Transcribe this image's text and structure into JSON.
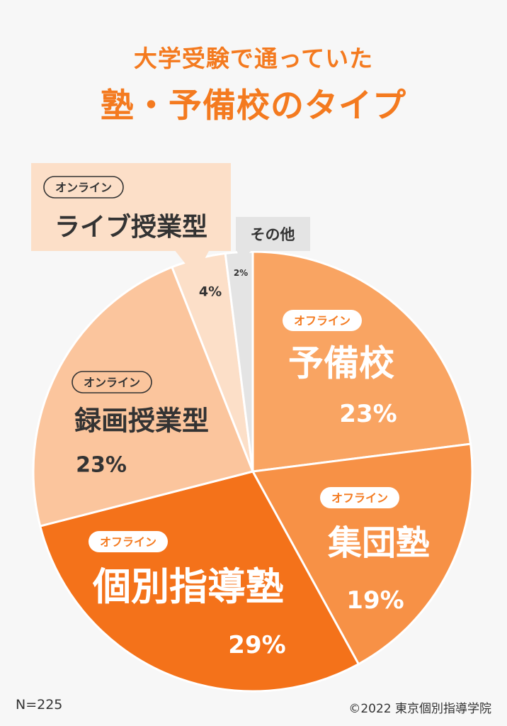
{
  "title": {
    "line1": "大学受験で通っていた",
    "line2": "塾・予備校のタイプ"
  },
  "chart_data": {
    "type": "pie",
    "title": "大学受験で通っていた 塾・予備校のタイプ",
    "slices": [
      {
        "tag": "オフライン",
        "label": "予備校",
        "value": 23,
        "value_label": "23%",
        "color": "#f9a462"
      },
      {
        "tag": "オフライン",
        "label": "集団塾",
        "value": 19,
        "value_label": "19%",
        "color": "#f79146"
      },
      {
        "tag": "オフライン",
        "label": "個別指導塾",
        "value": 29,
        "value_label": "29%",
        "color": "#f4721a"
      },
      {
        "tag": "オンライン",
        "label": "録画授業型",
        "value": 23,
        "value_label": "23%",
        "color": "#fbc59d"
      },
      {
        "tag": "オンライン",
        "label": "ライブ授業型",
        "value": 4,
        "value_label": "4%",
        "color": "#fcdfc8"
      },
      {
        "tag": "",
        "label": "その他",
        "value": 2,
        "value_label": "2%",
        "color": "#e4e4e4"
      }
    ],
    "start": "12 o'clock",
    "direction": "clockwise"
  },
  "footer": {
    "n": "N=225",
    "copyright": "©2022 東京個別指導学院"
  }
}
